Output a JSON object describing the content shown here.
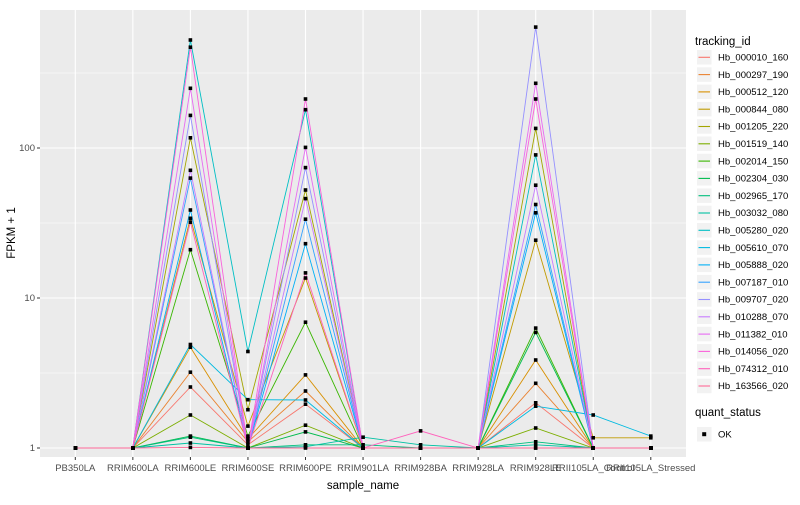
{
  "figure": {
    "xlabel": "sample_name",
    "ylabel": "FPKM + 1",
    "legend_title": "tracking_id",
    "legend2_title": "quant_status",
    "legend2_item": "OK"
  },
  "chart_data": {
    "type": "line",
    "title": "",
    "xlabel": "sample_name",
    "ylabel": "FPKM + 1",
    "y_scale": "log10",
    "grid": true,
    "legend_position": "right",
    "legend_title": "tracking_id",
    "quant_status_legend": {
      "title": "quant_status",
      "items": [
        {
          "label": "OK",
          "marker": "black-square"
        }
      ]
    },
    "panel_bg": "#EBEBEB",
    "grid_color": "#FFFFFF",
    "tick_label_color": "#4D4D4D",
    "point_color": "#000000",
    "y_ticks": [
      1,
      10,
      100
    ],
    "y_minor_ticks": [
      3.162,
      31.623,
      316.23
    ],
    "ylim": [
      0.87,
      832
    ],
    "x_categories": [
      "PB350LA",
      "RRIM600LA",
      "RRIM600LE",
      "RRIM600SE",
      "RRIM600PE",
      "RRIM901LA",
      "RRIM928BA",
      "RRIM928LA",
      "RRIM928LE",
      "RRII105LA_Control",
      "RRII105LA_Stressed"
    ],
    "series": [
      {
        "name": "Hb_000010_160",
        "color": "#F8766D",
        "values": [
          1,
          1,
          2.55,
          1.05,
          1.96,
          1,
          1,
          1,
          2.0,
          1,
          1
        ]
      },
      {
        "name": "Hb_000297_190",
        "color": "#EA8331",
        "values": [
          1,
          1,
          3.2,
          1.1,
          2.4,
          1,
          1,
          1,
          2.7,
          1,
          1
        ]
      },
      {
        "name": "Hb_000512_120",
        "color": "#D89000",
        "values": [
          1,
          1,
          4.7,
          1.15,
          3.07,
          1,
          1,
          1,
          3.86,
          1,
          1
        ]
      },
      {
        "name": "Hb_000844_080",
        "color": "#C09B00",
        "values": [
          1,
          1,
          34,
          1.4,
          13.6,
          1,
          1,
          1,
          24.3,
          1.17,
          1.17
        ]
      },
      {
        "name": "Hb_001205_220",
        "color": "#A3A500",
        "values": [
          1,
          1,
          117,
          1.8,
          52.5,
          1,
          1,
          1,
          135,
          1,
          1
        ]
      },
      {
        "name": "Hb_001519_140",
        "color": "#7CAE00",
        "values": [
          1,
          1,
          1.66,
          1,
          1.42,
          1,
          1,
          1,
          1.36,
          1,
          1
        ]
      },
      {
        "name": "Hb_002014_150",
        "color": "#39B600",
        "values": [
          1,
          1,
          21,
          1.2,
          6.9,
          1,
          1,
          1,
          6.3,
          1,
          1
        ]
      },
      {
        "name": "Hb_002304_030",
        "color": "#00BB4E",
        "values": [
          1,
          1,
          1.2,
          1,
          1.28,
          1,
          1,
          1,
          5.9,
          1,
          1
        ]
      },
      {
        "name": "Hb_002965_170",
        "color": "#00BF7D",
        "values": [
          1,
          1,
          1.18,
          1,
          1.05,
          1.05,
          1,
          1,
          1.1,
          1,
          1
        ]
      },
      {
        "name": "Hb_003032_080",
        "color": "#00C1A3",
        "values": [
          1,
          1,
          1.08,
          1,
          1.02,
          1.18,
          1.05,
          1,
          1.05,
          1,
          1
        ]
      },
      {
        "name": "Hb_005280_020",
        "color": "#00BFC4",
        "values": [
          1,
          1,
          525,
          4.4,
          180,
          1,
          1,
          1,
          90,
          1,
          1
        ]
      },
      {
        "name": "Hb_005610_070",
        "color": "#00BAE0",
        "values": [
          1,
          1,
          4.9,
          2.1,
          2.09,
          1,
          1,
          1,
          1.9,
          1.66,
          1.2
        ]
      },
      {
        "name": "Hb_005888_020",
        "color": "#00B0F6",
        "values": [
          1,
          1,
          38.6,
          1,
          23,
          1,
          1,
          1,
          37,
          1,
          1
        ]
      },
      {
        "name": "Hb_007187_010",
        "color": "#35A2FF",
        "values": [
          1,
          1,
          63,
          1,
          33.5,
          1,
          1,
          1,
          42,
          1,
          1
        ]
      },
      {
        "name": "Hb_009707_020",
        "color": "#9590FF",
        "values": [
          1,
          1,
          165,
          1,
          74,
          1,
          1,
          1,
          640,
          1,
          1
        ]
      },
      {
        "name": "Hb_010288_070",
        "color": "#C77CFF",
        "values": [
          1,
          1,
          71,
          1,
          46,
          1,
          1,
          1,
          56.5,
          1,
          1
        ]
      },
      {
        "name": "Hb_011382_010",
        "color": "#E76BF3",
        "values": [
          1,
          1,
          250,
          1,
          101,
          1,
          1,
          1,
          270,
          1,
          1
        ]
      },
      {
        "name": "Hb_014056_020",
        "color": "#FA62DB",
        "values": [
          1,
          1,
          470,
          1,
          212,
          1,
          1,
          1,
          212,
          1,
          1
        ]
      },
      {
        "name": "Hb_074312_010",
        "color": "#FF62BC",
        "values": [
          1,
          1,
          32,
          1,
          14.7,
          1,
          1.3,
          1,
          1,
          1,
          1
        ]
      },
      {
        "name": "Hb_163566_020",
        "color": "#FF6A98",
        "values": [
          1,
          1,
          1.01,
          1,
          1,
          1,
          1,
          1,
          1,
          1,
          1
        ]
      }
    ]
  }
}
